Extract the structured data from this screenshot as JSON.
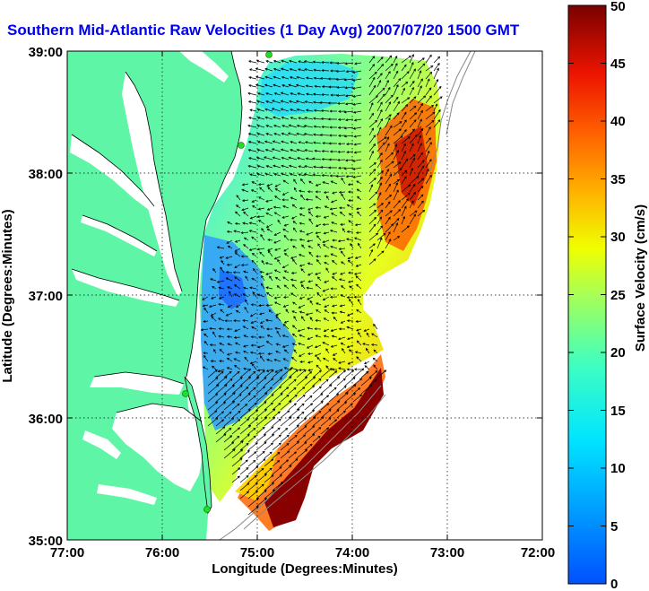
{
  "title": "Southern Mid-Atlantic Raw Velocities (1 Day Avg) 2007/07/20 1500 GMT",
  "x_axis": {
    "label": "Longitude (Degrees:Minutes)",
    "ticks": [
      "77:00",
      "76:00",
      "75:00",
      "74:00",
      "73:00",
      "72:00"
    ]
  },
  "y_axis": {
    "label": "Latitude (Degrees:Minutes)",
    "ticks": [
      "39:00",
      "38:00",
      "37:00",
      "36:00",
      "35:00"
    ]
  },
  "colorbar": {
    "label": "Surface Velocity (cm/s)",
    "min": 0,
    "max": 50,
    "ticks": [
      "0",
      "5",
      "10",
      "15",
      "20",
      "25",
      "30",
      "35",
      "40",
      "45",
      "50"
    ]
  },
  "map_extent": {
    "lon_min": -77,
    "lon_max": -72,
    "lat_min": 35,
    "lat_max": 39
  },
  "colors": {
    "land": "#5ef5a6",
    "title": "#0000ee",
    "station_marker": "#22dd22"
  }
}
